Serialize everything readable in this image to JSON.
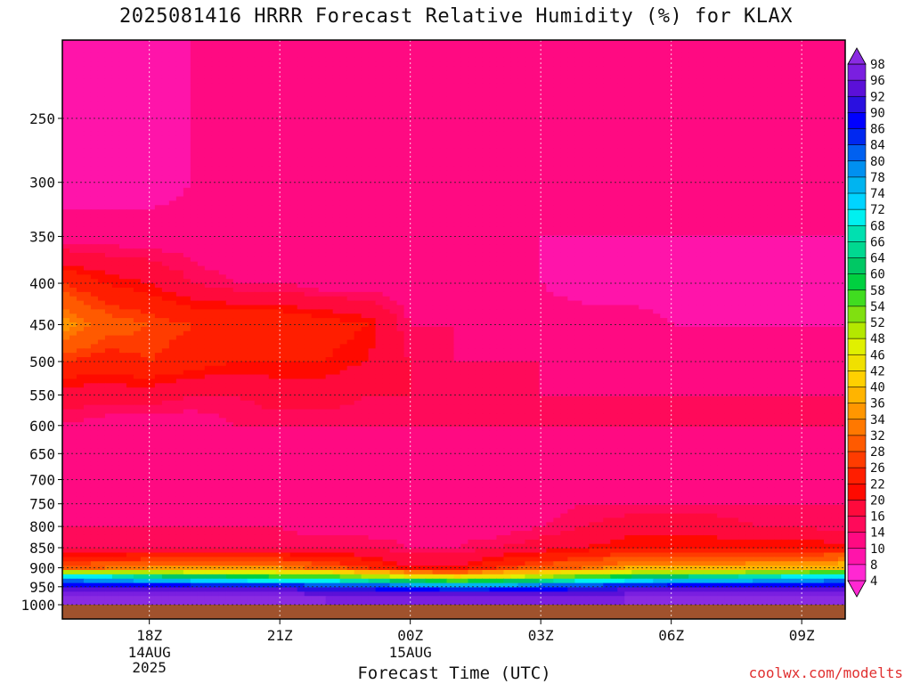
{
  "title": "2025081416 HRRR Forecast Relative Humidity (%) for KLAX",
  "credit": "coolwx.com/modelts",
  "chart_data": {
    "type": "contour",
    "title": "2025081416 HRRR Forecast Relative Humidity (%) for KLAX",
    "xlabel": "Forecast Time (UTC)",
    "ylabel": "",
    "x_ticks": [
      {
        "hour": 2,
        "label": "18Z",
        "sub": [
          "14AUG",
          "2025"
        ]
      },
      {
        "hour": 5,
        "label": "21Z",
        "sub": []
      },
      {
        "hour": 8,
        "label": "00Z",
        "sub": [
          "15AUG"
        ]
      },
      {
        "hour": 11,
        "label": "03Z",
        "sub": []
      },
      {
        "hour": 14,
        "label": "06Z",
        "sub": []
      },
      {
        "hour": 17,
        "label": "09Z",
        "sub": []
      }
    ],
    "xlim_hours": [
      0,
      18
    ],
    "y_ticks": [
      250,
      300,
      350,
      400,
      450,
      500,
      550,
      600,
      650,
      700,
      750,
      800,
      850,
      900,
      950,
      1000
    ],
    "ylim_hPa": [
      200,
      1000
    ],
    "yscale": "log",
    "grid": true,
    "colorbar": {
      "labels": [
        "98",
        "96",
        "92",
        "90",
        "86",
        "84",
        "80",
        "78",
        "74",
        "72",
        "68",
        "66",
        "64",
        "60",
        "58",
        "54",
        "52",
        "48",
        "46",
        "42",
        "40",
        "36",
        "34",
        "32",
        "28",
        "26",
        "22",
        "20",
        "16",
        "14",
        "10",
        "8",
        "4"
      ],
      "colors": [
        "#8a2be2",
        "#7a1fe0",
        "#5b10d8",
        "#2a10e0",
        "#0000ff",
        "#0028f0",
        "#0060f0",
        "#0090f0",
        "#00b4f0",
        "#00d4ff",
        "#00f0f0",
        "#00e0b0",
        "#00d890",
        "#00c864",
        "#00d040",
        "#40dc20",
        "#80e010",
        "#b4e800",
        "#e0f000",
        "#f0e000",
        "#ffd000",
        "#ffb400",
        "#ff9600",
        "#ff7800",
        "#ff5a00",
        "#ff3c00",
        "#ff1e00",
        "#ff0a00",
        "#ff0a3c",
        "#ff0a5a",
        "#ff0a82",
        "#ff14aa",
        "#ff28d2"
      ],
      "top_color": "#8a2be2",
      "bottom_color": "#ff28d2"
    },
    "surface_color": "#a0522d",
    "series": [
      {
        "level_hPa": 230,
        "rh": [
          8,
          8,
          8,
          10,
          10,
          10,
          10,
          10,
          10,
          10,
          10,
          10,
          10,
          10,
          12,
          12,
          10,
          10,
          10
        ]
      },
      {
        "level_hPa": 300,
        "rh": [
          8,
          8,
          8,
          10,
          10,
          10,
          12,
          12,
          10,
          10,
          10,
          10,
          12,
          12,
          12,
          12,
          12,
          10,
          10
        ]
      },
      {
        "level_hPa": 350,
        "rh": [
          12,
          12,
          12,
          12,
          10,
          12,
          12,
          12,
          10,
          10,
          10,
          10,
          10,
          10,
          10,
          10,
          10,
          10,
          10
        ]
      },
      {
        "level_hPa": 400,
        "rh": [
          26,
          22,
          20,
          16,
          14,
          14,
          12,
          12,
          12,
          10,
          10,
          10,
          8,
          8,
          8,
          8,
          8,
          8,
          8
        ]
      },
      {
        "level_hPa": 450,
        "rh": [
          36,
          30,
          28,
          26,
          26,
          26,
          24,
          22,
          14,
          14,
          12,
          12,
          12,
          12,
          10,
          10,
          10,
          10,
          10
        ]
      },
      {
        "level_hPa": 500,
        "rh": [
          26,
          24,
          26,
          24,
          22,
          22,
          22,
          20,
          16,
          14,
          14,
          14,
          12,
          12,
          12,
          12,
          12,
          12,
          12
        ]
      },
      {
        "level_hPa": 550,
        "rh": [
          18,
          18,
          18,
          16,
          16,
          18,
          18,
          16,
          16,
          16,
          14,
          14,
          14,
          14,
          14,
          14,
          14,
          14,
          14
        ]
      },
      {
        "level_hPa": 600,
        "rh": [
          14,
          12,
          12,
          12,
          14,
          14,
          14,
          14,
          14,
          14,
          14,
          14,
          14,
          14,
          14,
          14,
          14,
          14,
          14
        ]
      },
      {
        "level_hPa": 650,
        "rh": [
          12,
          10,
          10,
          12,
          12,
          12,
          12,
          12,
          12,
          12,
          12,
          12,
          12,
          12,
          12,
          12,
          12,
          12,
          12
        ]
      },
      {
        "level_hPa": 700,
        "rh": [
          12,
          12,
          12,
          12,
          12,
          12,
          12,
          10,
          10,
          10,
          12,
          12,
          12,
          12,
          12,
          12,
          12,
          12,
          12
        ]
      },
      {
        "level_hPa": 750,
        "rh": [
          12,
          12,
          12,
          12,
          12,
          12,
          12,
          12,
          10,
          10,
          10,
          12,
          14,
          14,
          14,
          14,
          14,
          14,
          14
        ]
      },
      {
        "level_hPa": 800,
        "rh": [
          14,
          14,
          14,
          14,
          14,
          14,
          12,
          12,
          12,
          12,
          12,
          14,
          16,
          18,
          18,
          18,
          16,
          16,
          14
        ]
      },
      {
        "level_hPa": 850,
        "rh": [
          16,
          16,
          16,
          16,
          16,
          16,
          16,
          16,
          14,
          14,
          16,
          18,
          20,
          22,
          22,
          22,
          22,
          22,
          22
        ]
      },
      {
        "level_hPa": 900,
        "rh": [
          30,
          32,
          34,
          34,
          34,
          34,
          30,
          26,
          20,
          20,
          26,
          30,
          32,
          36,
          36,
          36,
          38,
          38,
          40
        ]
      },
      {
        "level_hPa": 925,
        "rh": [
          74,
          72,
          68,
          64,
          62,
          60,
          58,
          54,
          48,
          44,
          46,
          52,
          58,
          62,
          66,
          68,
          70,
          72,
          74
        ]
      },
      {
        "level_hPa": 950,
        "rh": [
          92,
          92,
          92,
          90,
          90,
          90,
          88,
          88,
          84,
          80,
          82,
          86,
          88,
          90,
          90,
          92,
          92,
          92,
          92
        ]
      },
      {
        "level_hPa": 975,
        "rh": [
          98,
          98,
          98,
          98,
          98,
          98,
          98,
          96,
          96,
          96,
          96,
          96,
          96,
          98,
          98,
          98,
          98,
          98,
          98
        ]
      },
      {
        "level_hPa": 1000,
        "rh": [
          98,
          98,
          98,
          98,
          98,
          98,
          98,
          98,
          98,
          98,
          98,
          98,
          98,
          98,
          98,
          98,
          98,
          98,
          98
        ]
      }
    ]
  }
}
